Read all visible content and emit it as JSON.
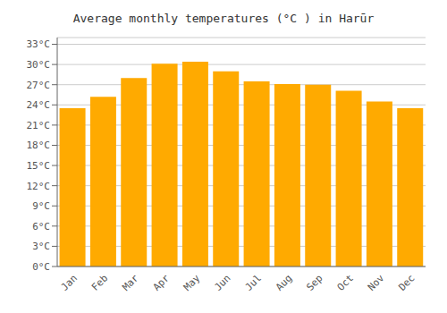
{
  "chart_data": {
    "type": "bar",
    "title": "Average monthly temperatures (°C ) in Harūr",
    "categories": [
      "Jan",
      "Feb",
      "Mar",
      "Apr",
      "May",
      "Jun",
      "Jul",
      "Aug",
      "Sep",
      "Oct",
      "Nov",
      "Dec"
    ],
    "values": [
      23.5,
      25.2,
      28.0,
      30.1,
      30.4,
      29.0,
      27.5,
      27.1,
      27.0,
      26.1,
      24.5,
      23.5
    ],
    "color": "#FFAA00",
    "ylim": [
      0,
      34
    ],
    "yticks": [
      {
        "value": 0,
        "label": "0°C"
      },
      {
        "value": 3,
        "label": "3°C"
      },
      {
        "value": 6,
        "label": "6°C"
      },
      {
        "value": 9,
        "label": "9°C"
      },
      {
        "value": 12,
        "label": "12°C"
      },
      {
        "value": 15,
        "label": "15°C"
      },
      {
        "value": 18,
        "label": "18°C"
      },
      {
        "value": 21,
        "label": "21°C"
      },
      {
        "value": 24,
        "label": "24°C"
      },
      {
        "value": 27,
        "label": "27°C"
      },
      {
        "value": 30,
        "label": "30°C"
      },
      {
        "value": 33,
        "label": "33°C"
      }
    ],
    "grid": true
  }
}
